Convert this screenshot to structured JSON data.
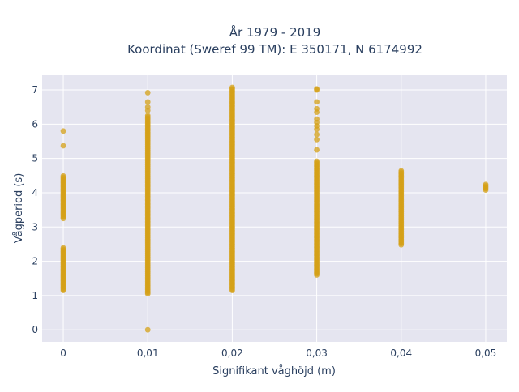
{
  "chart_data": {
    "type": "scatter",
    "title_lines": [
      "År 1979 - 2019",
      "Koordinat (Sweref 99 TM): E 350171, N 6174992"
    ],
    "xlabel": "Signifikant våghöjd (m)",
    "ylabel": "Vågperiod (s)",
    "xlim": [
      -0.0025,
      0.0525
    ],
    "ylim": [
      -0.35,
      7.45
    ],
    "x_ticks": [
      0,
      0.01,
      0.02,
      0.03,
      0.04,
      0.05
    ],
    "x_tick_labels": [
      "0",
      "0,01",
      "0,02",
      "0,03",
      "0,04",
      "0,05"
    ],
    "y_ticks": [
      0,
      1,
      2,
      3,
      4,
      5,
      6,
      7
    ],
    "y_tick_labels": [
      "0",
      "1",
      "2",
      "3",
      "4",
      "5",
      "6",
      "7"
    ],
    "grid": true,
    "marker_color": "#d4a017",
    "plot_bg": "#e5e5f0",
    "series": [
      {
        "points_by_x": [
          {
            "x": 0,
            "y_ranges": [
              [
                1.15,
                2.4
              ],
              [
                3.25,
                4.5
              ]
            ],
            "y_singles": [
              5.8,
              5.37
            ]
          },
          {
            "x": 0.01,
            "y_ranges": [
              [
                1.05,
                6.25
              ]
            ],
            "y_singles": [
              0,
              6.4,
              6.5,
              6.65,
              6.92
            ]
          },
          {
            "x": 0.02,
            "y_ranges": [
              [
                1.15,
                7.1
              ]
            ],
            "y_singles": []
          },
          {
            "x": 0.03,
            "y_ranges": [
              [
                1.6,
                4.95
              ]
            ],
            "y_singles": [
              5.25,
              5.55,
              5.7,
              5.85,
              5.95,
              6.05,
              6.15,
              6.35,
              6.45,
              6.65,
              7.0,
              7.03
            ]
          },
          {
            "x": 0.04,
            "y_ranges": [
              [
                2.48,
                4.65
              ]
            ],
            "y_singles": []
          },
          {
            "x": 0.05,
            "y_ranges": [
              [
                4.08,
                4.25
              ]
            ],
            "y_singles": []
          }
        ]
      }
    ]
  }
}
